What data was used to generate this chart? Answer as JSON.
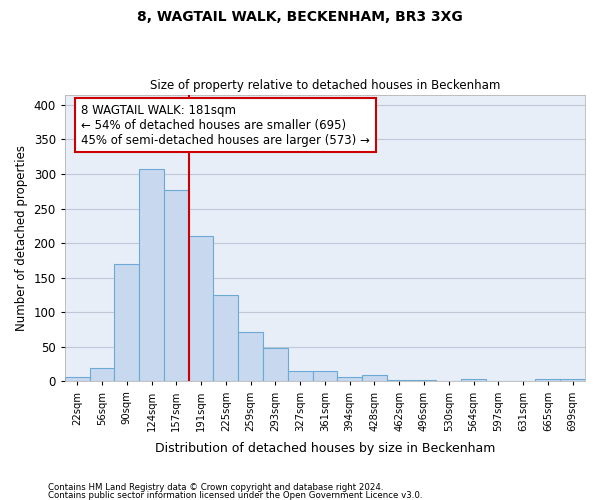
{
  "title1": "8, WAGTAIL WALK, BECKENHAM, BR3 3XG",
  "title2": "Size of property relative to detached houses in Beckenham",
  "xlabel": "Distribution of detached houses by size in Beckenham",
  "ylabel": "Number of detached properties",
  "footnote1": "Contains HM Land Registry data © Crown copyright and database right 2024.",
  "footnote2": "Contains public sector information licensed under the Open Government Licence v3.0.",
  "categories": [
    "22sqm",
    "56sqm",
    "90sqm",
    "124sqm",
    "157sqm",
    "191sqm",
    "225sqm",
    "259sqm",
    "293sqm",
    "327sqm",
    "361sqm",
    "394sqm",
    "428sqm",
    "462sqm",
    "496sqm",
    "530sqm",
    "564sqm",
    "597sqm",
    "631sqm",
    "665sqm",
    "699sqm"
  ],
  "values": [
    7,
    20,
    170,
    308,
    277,
    210,
    125,
    72,
    48,
    15,
    15,
    7,
    9,
    2,
    2,
    0,
    4,
    0,
    0,
    4,
    3
  ],
  "bar_color": "#c8d8ef",
  "bar_edge_color": "#6aaad4",
  "vline_index": 5,
  "vline_color": "#cc0000",
  "annotation_text": "8 WAGTAIL WALK: 181sqm\n← 54% of detached houses are smaller (695)\n45% of semi-detached houses are larger (573) →",
  "annotation_box_color": "#ffffff",
  "annotation_box_edge": "#cc0000",
  "ylim": [
    0,
    415
  ],
  "yticks": [
    0,
    50,
    100,
    150,
    200,
    250,
    300,
    350,
    400
  ],
  "plot_bg_color": "#e8eef8",
  "fig_bg_color": "#ffffff",
  "grid_color": "#c0c8d8"
}
